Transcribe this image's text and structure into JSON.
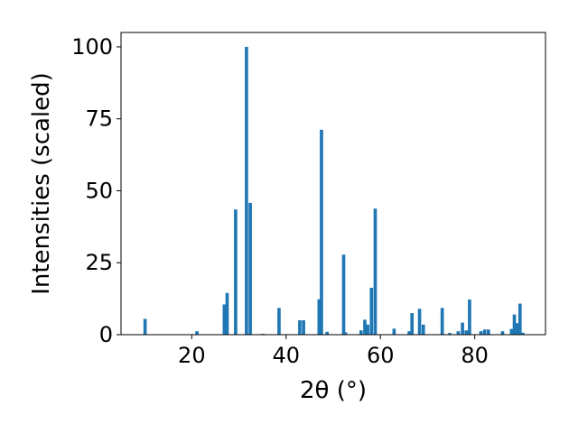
{
  "chart_data": {
    "type": "bar",
    "xlabel": "2θ (°)",
    "ylabel": "Intensities (scaled)",
    "xlim": [
      5,
      95
    ],
    "ylim": [
      0,
      105
    ],
    "xticks": [
      20,
      40,
      60,
      80
    ],
    "yticks": [
      0,
      25,
      50,
      75,
      100
    ],
    "grid": false,
    "color": "#1f77b4",
    "bar_width_deg": 0.7,
    "x": [
      10.1,
      21.1,
      26.9,
      27.5,
      29.3,
      31.6,
      32.4,
      35.1,
      38.5,
      42.9,
      43.7,
      47.0,
      47.5,
      48.7,
      52.2,
      52.6,
      55.9,
      56.7,
      57.3,
      58.1,
      58.9,
      62.9,
      66.1,
      66.7,
      68.3,
      69.1,
      73.1,
      74.7,
      76.5,
      77.4,
      78.2,
      78.9,
      81.3,
      82.1,
      82.9,
      85.9,
      87.8,
      88.4,
      89.0,
      89.6,
      90.2
    ],
    "values": [
      5.5,
      1.2,
      10.5,
      14.5,
      43.5,
      100,
      45.8,
      0.3,
      9.3,
      5,
      5,
      12.3,
      71.2,
      1,
      27.8,
      0.8,
      1.5,
      5.2,
      3.5,
      16.3,
      43.8,
      2.1,
      1.2,
      7.5,
      9,
      3.5,
      9.3,
      0.6,
      1.2,
      4.2,
      1.5,
      12.2,
      1.2,
      1.8,
      1.8,
      1.2,
      2,
      7,
      4,
      10.8,
      0.7
    ]
  }
}
